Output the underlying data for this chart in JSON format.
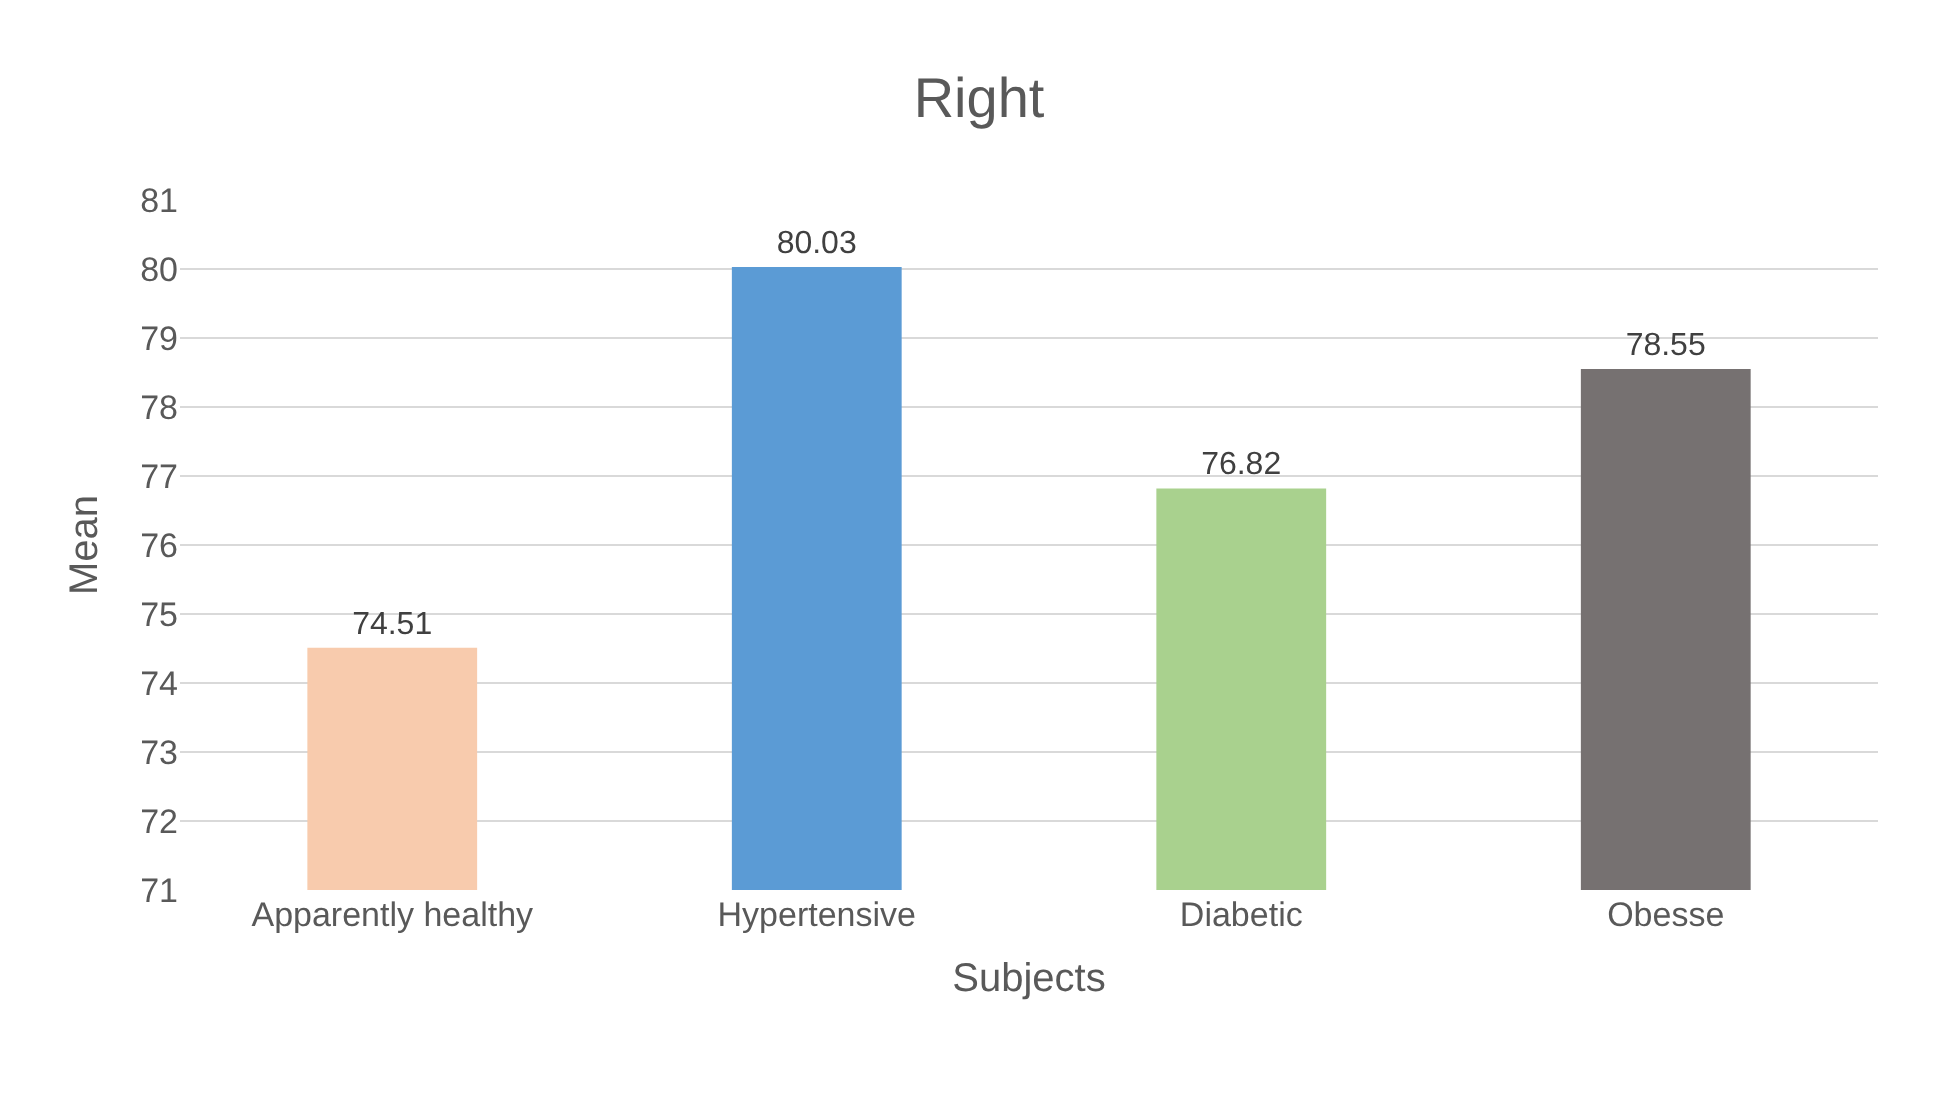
{
  "chart_data": {
    "type": "bar",
    "title": "Right",
    "xlabel": "Subjects",
    "ylabel": "Mean",
    "categories": [
      "Apparently healthy",
      "Hypertensive",
      "Diabetic",
      "Obesse"
    ],
    "values": [
      74.51,
      80.03,
      76.82,
      78.55
    ],
    "colors": [
      "#f8cbad",
      "#5b9bd5",
      "#a9d18e",
      "#767171"
    ],
    "ylim": [
      71,
      81
    ],
    "yticks": [
      71,
      72,
      73,
      74,
      75,
      76,
      77,
      78,
      79,
      80,
      81
    ],
    "grid": "y",
    "data_labels": true
  }
}
